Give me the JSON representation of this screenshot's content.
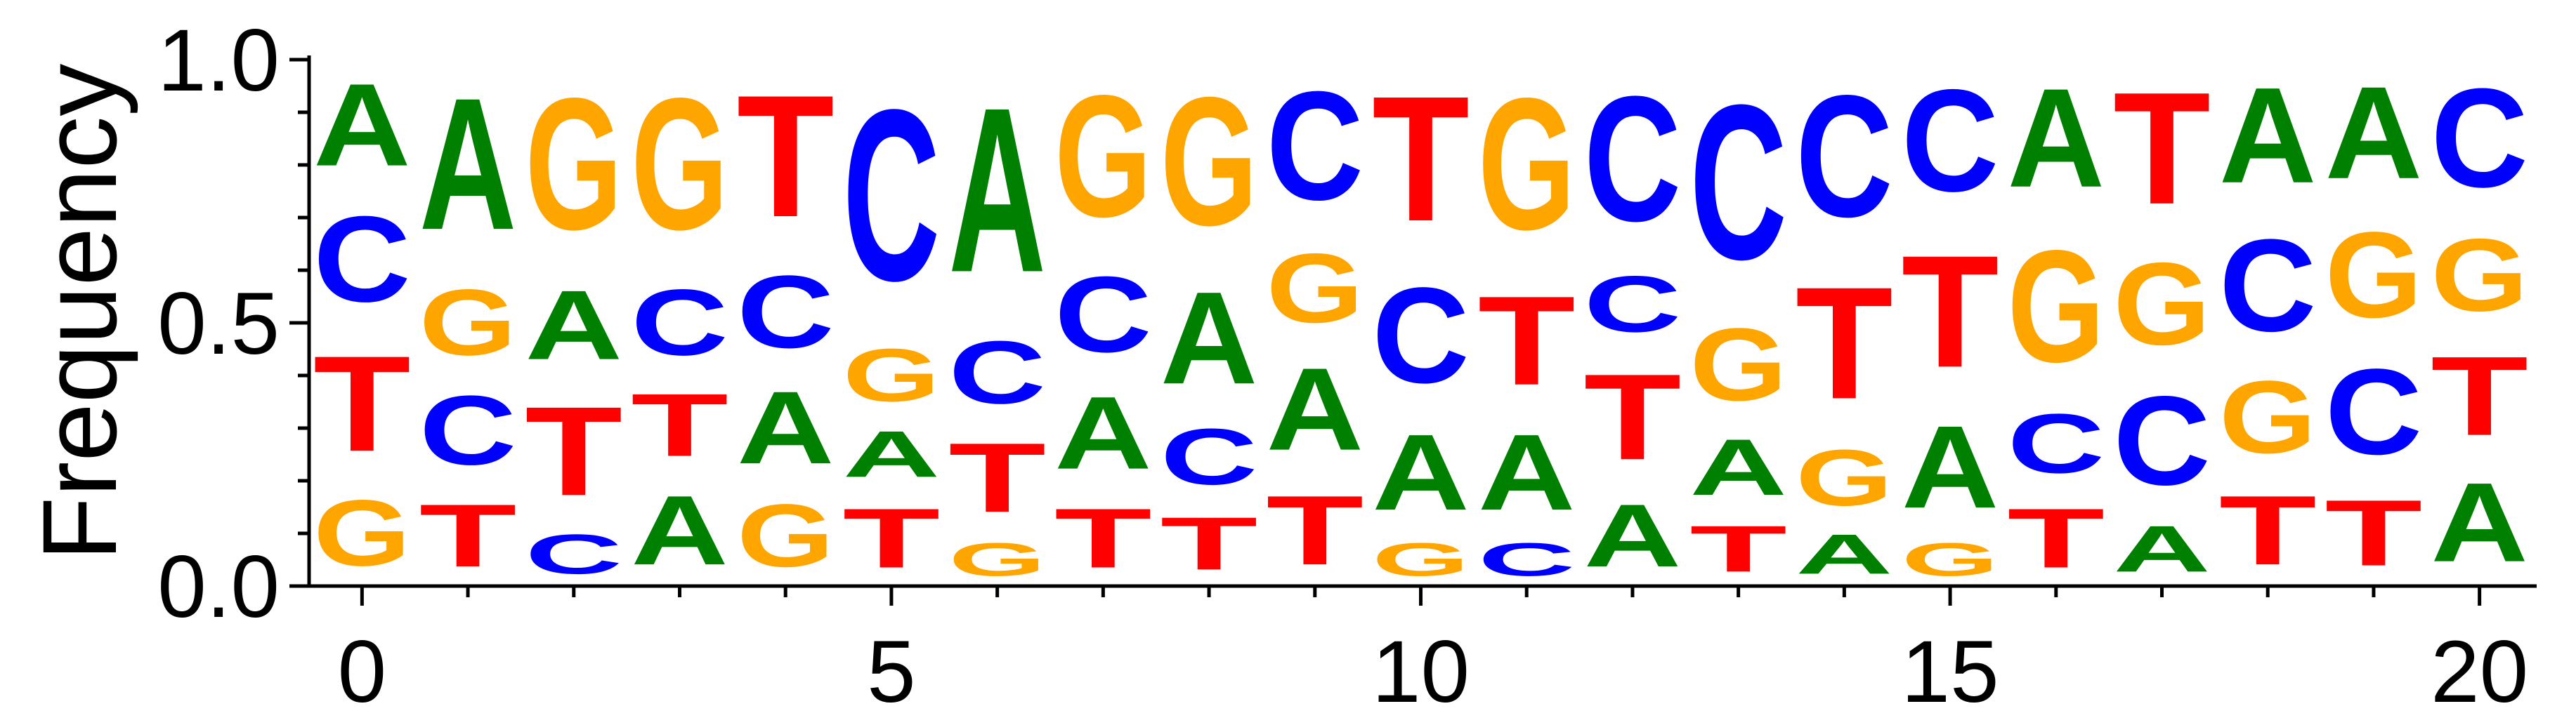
{
  "chart_data": {
    "type": "sequence_logo",
    "ylabel": "Frequency",
    "xlabel": "",
    "title": "",
    "ylim": [
      0,
      1.0
    ],
    "xlim": [
      -0.5,
      20.5
    ],
    "yticks": [
      "0.0",
      "0.5",
      "1.0"
    ],
    "ytick_values": [
      0,
      0.5,
      1.0
    ],
    "xticks": [
      "0",
      "5",
      "10",
      "15",
      "20"
    ],
    "xtick_values": [
      0,
      5,
      10,
      15,
      20
    ],
    "grid": false,
    "colors": {
      "A": "#008000",
      "C": "#0000ff",
      "G": "#ffa500",
      "T": "#ff0000"
    },
    "positions": [
      {
        "x": 0,
        "stack": [
          [
            "G",
            0.2
          ],
          [
            "T",
            0.29
          ],
          [
            "C",
            0.26
          ],
          [
            "A",
            0.25
          ]
        ]
      },
      {
        "x": 1,
        "stack": [
          [
            "T",
            0.19
          ],
          [
            "C",
            0.21
          ],
          [
            "G",
            0.2
          ],
          [
            "A",
            0.4
          ]
        ]
      },
      {
        "x": 2,
        "stack": [
          [
            "C",
            0.12
          ],
          [
            "T",
            0.27
          ],
          [
            "A",
            0.21
          ],
          [
            "G",
            0.4
          ]
        ]
      },
      {
        "x": 3,
        "stack": [
          [
            "A",
            0.21
          ],
          [
            "T",
            0.19
          ],
          [
            "C",
            0.2
          ],
          [
            "G",
            0.4
          ]
        ]
      },
      {
        "x": 4,
        "stack": [
          [
            "G",
            0.19
          ],
          [
            "A",
            0.22
          ],
          [
            "C",
            0.22
          ],
          [
            "T",
            0.37
          ]
        ]
      },
      {
        "x": 5,
        "stack": [
          [
            "T",
            0.18
          ],
          [
            "A",
            0.14
          ],
          [
            "G",
            0.16
          ],
          [
            "C",
            0.52
          ]
        ]
      },
      {
        "x": 6,
        "stack": [
          [
            "G",
            0.1
          ],
          [
            "T",
            0.21
          ],
          [
            "C",
            0.19
          ],
          [
            "A",
            0.5
          ]
        ]
      },
      {
        "x": 7,
        "stack": [
          [
            "T",
            0.18
          ],
          [
            "A",
            0.22
          ],
          [
            "C",
            0.23
          ],
          [
            "G",
            0.37
          ]
        ]
      },
      {
        "x": 8,
        "stack": [
          [
            "T",
            0.16
          ],
          [
            "C",
            0.17
          ],
          [
            "A",
            0.28
          ],
          [
            "G",
            0.39
          ]
        ]
      },
      {
        "x": 9,
        "stack": [
          [
            "T",
            0.21
          ],
          [
            "A",
            0.25
          ],
          [
            "G",
            0.21
          ],
          [
            "C",
            0.33
          ]
        ]
      },
      {
        "x": 10,
        "stack": [
          [
            "G",
            0.1
          ],
          [
            "A",
            0.23
          ],
          [
            "C",
            0.29
          ],
          [
            "T",
            0.38
          ]
        ]
      },
      {
        "x": 11,
        "stack": [
          [
            "C",
            0.1
          ],
          [
            "A",
            0.23
          ],
          [
            "T",
            0.27
          ],
          [
            "G",
            0.4
          ]
        ]
      },
      {
        "x": 12,
        "stack": [
          [
            "A",
            0.19
          ],
          [
            "T",
            0.26
          ],
          [
            "C",
            0.17
          ],
          [
            "C",
            0.38
          ]
        ]
      },
      {
        "x": 13,
        "stack": [
          [
            "T",
            0.14
          ],
          [
            "A",
            0.17
          ],
          [
            "G",
            0.22
          ],
          [
            "C",
            0.47
          ]
        ]
      },
      {
        "x": 14,
        "stack": [
          [
            "A",
            0.12
          ],
          [
            "G",
            0.17
          ],
          [
            "T",
            0.34
          ],
          [
            "C",
            0.37
          ]
        ]
      },
      {
        "x": 15,
        "stack": [
          [
            "G",
            0.1
          ],
          [
            "A",
            0.25
          ],
          [
            "T",
            0.34
          ],
          [
            "C",
            0.31
          ]
        ]
      },
      {
        "x": 16,
        "stack": [
          [
            "T",
            0.18
          ],
          [
            "C",
            0.18
          ],
          [
            "G",
            0.34
          ],
          [
            "A",
            0.3
          ]
        ]
      },
      {
        "x": 17,
        "stack": [
          [
            "A",
            0.14
          ],
          [
            "C",
            0.27
          ],
          [
            "G",
            0.25
          ],
          [
            "T",
            0.34
          ]
        ]
      },
      {
        "x": 18,
        "stack": [
          [
            "T",
            0.21
          ],
          [
            "G",
            0.22
          ],
          [
            "C",
            0.28
          ],
          [
            "A",
            0.29
          ]
        ]
      },
      {
        "x": 19,
        "stack": [
          [
            "T",
            0.2
          ],
          [
            "C",
            0.26
          ],
          [
            "G",
            0.26
          ],
          [
            "A",
            0.28
          ]
        ]
      },
      {
        "x": 20,
        "stack": [
          [
            "A",
            0.24
          ],
          [
            "T",
            0.24
          ],
          [
            "G",
            0.22
          ],
          [
            "C",
            0.3
          ]
        ]
      }
    ]
  }
}
